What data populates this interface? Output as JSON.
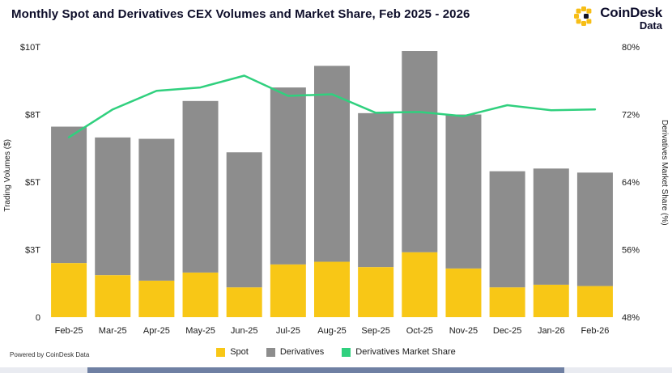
{
  "title": "Monthly Spot and Derivatives CEX Volumes and Market Share, Feb 2025 - 2026",
  "brand": {
    "name": "CoinDesk",
    "sub": "Data",
    "accent": "#F7BE16",
    "text_color": "#0d0d2b"
  },
  "footer": {
    "powered_by": "Powered by CoinDesk Data"
  },
  "legend": [
    {
      "label": "Spot",
      "color": "#F8C716"
    },
    {
      "label": "Derivatives",
      "color": "#8D8D8D"
    },
    {
      "label": "Derivatives Market Share",
      "color": "#30D07E"
    }
  ],
  "chart_data": {
    "type": "bar",
    "subtype": "stacked-bars-with-line-overlay",
    "title": "Monthly Spot and Derivatives CEX Volumes and Market Share, Feb 2025 - 2026",
    "categories": [
      "Feb-25",
      "Mar-25",
      "Apr-25",
      "May-25",
      "Jun-25",
      "Jul-25",
      "Aug-25",
      "Sep-25",
      "Oct-25",
      "Nov-25",
      "Dec-25",
      "Jan-26",
      "Feb-26"
    ],
    "unit": "trillion USD",
    "series": [
      {
        "name": "Spot",
        "type": "bar",
        "stack": "volume",
        "axis": "left",
        "color": "#F8C716",
        "values": [
          2.0,
          1.55,
          1.35,
          1.65,
          1.1,
          1.95,
          2.05,
          1.85,
          2.4,
          1.8,
          1.1,
          1.2,
          1.15
        ]
      },
      {
        "name": "Derivatives",
        "type": "bar",
        "stack": "volume",
        "axis": "left",
        "color": "#8D8D8D",
        "values": [
          5.05,
          5.1,
          5.25,
          6.35,
          5.0,
          6.55,
          7.25,
          5.7,
          7.45,
          5.7,
          4.3,
          4.3,
          4.2
        ]
      },
      {
        "name": "Derivatives Market Share",
        "type": "line",
        "axis": "right",
        "color": "#30D07E",
        "values": [
          69.3,
          72.6,
          74.8,
          75.2,
          76.6,
          74.2,
          74.4,
          72.2,
          72.3,
          71.8,
          73.1,
          72.5,
          72.6
        ]
      }
    ],
    "left_axis": {
      "label": "Trading Volumes ($)",
      "min": 0,
      "max": 10,
      "ticks": [
        {
          "value": 10,
          "label": "$10T"
        },
        {
          "value": 7.5,
          "label": "$8T"
        },
        {
          "value": 5,
          "label": "$5T"
        },
        {
          "value": 2.5,
          "label": "$3T"
        },
        {
          "value": 0,
          "label": "0"
        }
      ]
    },
    "right_axis": {
      "label": "Derivatives Market Share (%)",
      "min": 48,
      "max": 80,
      "ticks": [
        {
          "value": 80,
          "label": "80%"
        },
        {
          "value": 72,
          "label": "72%"
        },
        {
          "value": 64,
          "label": "64%"
        },
        {
          "value": 56,
          "label": "56%"
        },
        {
          "value": 48,
          "label": "48%"
        }
      ]
    },
    "grid": false,
    "legend_position": "bottom"
  }
}
